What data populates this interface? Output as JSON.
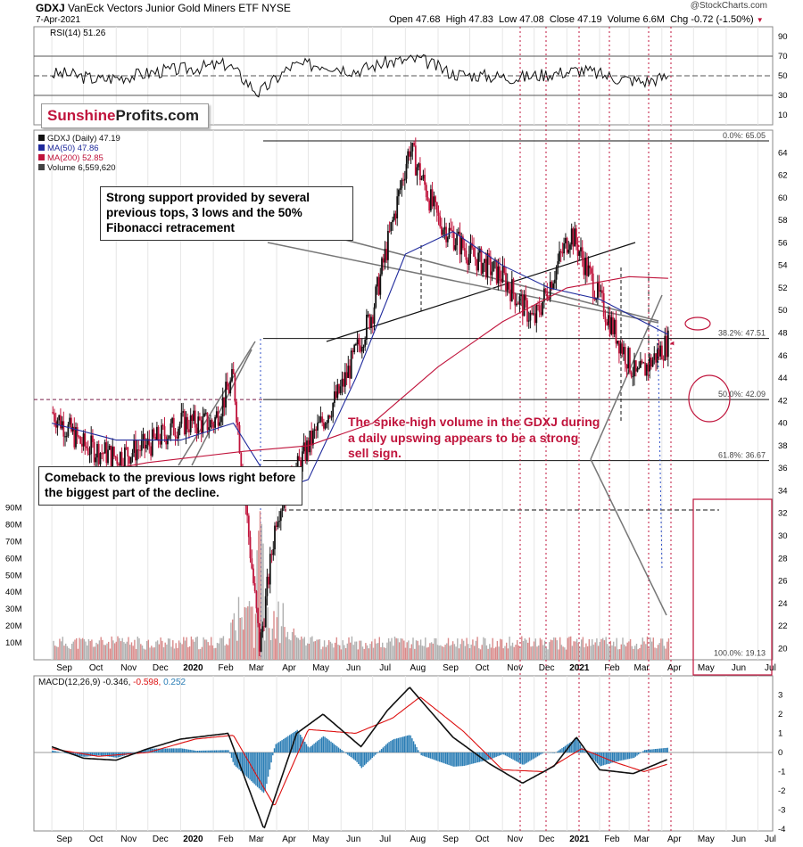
{
  "header": {
    "symbol": "GDXJ",
    "name": "VanEck Vectors Junior Gold Miners ETF",
    "exchange": "NYSE",
    "date": "7-Apr-2021",
    "watermark": "@StockCharts.com",
    "open_label": "Open",
    "open": "47.68",
    "high_label": "High",
    "high": "47.83",
    "low_label": "Low",
    "low": "47.08",
    "close_label": "Close",
    "close": "47.19",
    "volume_label": "Volume",
    "volume": "6.6M",
    "chg_label": "Chg",
    "chg": "-0.72 (-1.50%)",
    "chg_arrow": "▼"
  },
  "logo": {
    "part1": "Sunshine",
    "part2": "Profits.com"
  },
  "callouts": {
    "support": "Strong support provided by several previous tops, 3 lows and the 50% Fibonacci retracement",
    "comeback": "Comeback to the previous lows right before the biggest part of the decline.",
    "volume": "The spike-high volume in the GDXJ during a daily upswing appears to be a strong sell sign."
  },
  "colors": {
    "price_up": "#111111",
    "price_down": "#c0143c",
    "ma50": "#1f2a9c",
    "ma200": "#c0143c",
    "annotation_red": "#c0143c",
    "histogram": "#2a7db5",
    "volume_down": "#d98a8a",
    "volume_up": "#b0b0b0"
  },
  "chart_data": [
    {
      "type": "line",
      "panel": "rsi",
      "title": "RSI(14) 51.26",
      "ylim": [
        0,
        100
      ],
      "yticks": [
        10,
        30,
        50,
        70,
        90
      ],
      "reference_lines": [
        30,
        50,
        70
      ],
      "x": [
        "2019-09",
        "2019-10",
        "2019-11",
        "2019-12",
        "2020-01",
        "2020-02",
        "2020-03",
        "2020-04",
        "2020-05",
        "2020-06",
        "2020-07",
        "2020-08",
        "2020-09",
        "2020-10",
        "2020-11",
        "2020-12",
        "2021-01",
        "2021-02",
        "2021-03",
        "2021-04"
      ],
      "values": [
        52,
        46,
        50,
        55,
        58,
        62,
        32,
        60,
        62,
        55,
        64,
        67,
        52,
        50,
        48,
        52,
        56,
        48,
        44,
        51
      ]
    },
    {
      "type": "line",
      "panel": "price",
      "legend": [
        "GDXJ (Daily) 47.19",
        "MA(50) 47.86",
        "MA(200) 52.85",
        "Volume 6,559,620"
      ],
      "ylim": [
        19,
        66
      ],
      "yticks": [
        20,
        22,
        24,
        26,
        28,
        30,
        32,
        34,
        36,
        38,
        40,
        42,
        44,
        46,
        48,
        50,
        52,
        54,
        56,
        58,
        60,
        62,
        64
      ],
      "x_labels": [
        "Sep",
        "Oct",
        "Nov",
        "Dec",
        "2020",
        "Feb",
        "Mar",
        "Apr",
        "May",
        "Jun",
        "Jul",
        "Aug",
        "Sep",
        "Oct",
        "Nov",
        "Dec",
        "2021",
        "Feb",
        "Mar",
        "Apr",
        "May",
        "Jun",
        "Jul"
      ],
      "series": [
        {
          "name": "GDXJ",
          "x": [
            "2019-09-01",
            "2019-10-01",
            "2019-11-01",
            "2019-12-01",
            "2020-01-01",
            "2020-02-01",
            "2020-02-20",
            "2020-03-16",
            "2020-04-01",
            "2020-05-01",
            "2020-06-01",
            "2020-07-01",
            "2020-08-05",
            "2020-09-01",
            "2020-10-01",
            "2020-11-01",
            "2020-12-01",
            "2021-01-05",
            "2021-02-01",
            "2021-03-08",
            "2021-04-07"
          ],
          "values": [
            41,
            38,
            37,
            38,
            40,
            40,
            44,
            20,
            32,
            38,
            43,
            50,
            64.5,
            58,
            55,
            53,
            49,
            57,
            51,
            44,
            47.19
          ]
        },
        {
          "name": "MA(50)",
          "x": [
            "2019-09-01",
            "2019-11-01",
            "2020-01-01",
            "2020-02-20",
            "2020-03-31",
            "2020-05-01",
            "2020-06-15",
            "2020-08-01",
            "2020-09-15",
            "2020-11-01",
            "2020-12-15",
            "2021-02-01",
            "2021-04-07"
          ],
          "values": [
            40,
            38.5,
            38.5,
            40,
            34,
            35,
            44,
            55,
            57,
            54,
            52,
            51,
            47.86
          ]
        },
        {
          "name": "MA(200)",
          "x": [
            "2019-09-01",
            "2019-12-01",
            "2020-03-01",
            "2020-05-01",
            "2020-07-01",
            "2020-09-01",
            "2020-11-01",
            "2021-01-01",
            "2021-03-01",
            "2021-04-07"
          ],
          "values": [
            35,
            36.5,
            37.5,
            38,
            40,
            45,
            49,
            52,
            53,
            52.85
          ]
        }
      ],
      "fibonacci": [
        {
          "label": "0.0%: 65.05",
          "value": 65.05
        },
        {
          "label": "38.2%: 47.51",
          "value": 47.51
        },
        {
          "label": "50.0%: 42.09",
          "value": 42.09
        },
        {
          "label": "61.8%: 36.67",
          "value": 36.67
        },
        {
          "label": "100.0%: 19.13",
          "value": 19.13
        }
      ]
    },
    {
      "type": "bar",
      "panel": "volume",
      "yticks_labels": [
        "10M",
        "20M",
        "30M",
        "40M",
        "50M",
        "60M",
        "70M",
        "80M",
        "90M"
      ],
      "ylim": [
        0,
        95
      ],
      "spike": {
        "date": "2020-03-16",
        "value": 90
      }
    },
    {
      "type": "line",
      "panel": "macd",
      "title": "MACD(12,26,9) -0.346, -0.598, 0.252",
      "title_parts": {
        "label": "MACD(12,26,9)",
        "macd": "-0.346",
        "signal": "-0.598",
        "hist": "0.252"
      },
      "ylim": [
        -4.5,
        3.5
      ],
      "yticks": [
        -4,
        -3,
        -2,
        -1,
        0,
        1,
        2,
        3
      ],
      "x_labels": [
        "Sep",
        "Oct",
        "Nov",
        "Dec",
        "2020",
        "Feb",
        "Mar",
        "Apr",
        "May",
        "Jun",
        "Jul",
        "Aug",
        "Sep",
        "Oct",
        "Nov",
        "Dec",
        "2021",
        "Feb",
        "Mar",
        "Apr",
        "May",
        "Jun",
        "Jul"
      ],
      "series": [
        {
          "name": "MACD",
          "x": [
            "2019-09-01",
            "2019-10-01",
            "2019-11-01",
            "2019-12-01",
            "2020-01-01",
            "2020-02-15",
            "2020-03-20",
            "2020-04-20",
            "2020-05-15",
            "2020-06-20",
            "2020-07-15",
            "2020-08-05",
            "2020-09-15",
            "2020-10-20",
            "2020-11-20",
            "2020-12-20",
            "2021-01-10",
            "2021-02-01",
            "2021-03-05",
            "2021-04-07"
          ],
          "values": [
            0.3,
            -0.3,
            -0.4,
            0.2,
            0.7,
            1.0,
            -4.0,
            1.0,
            2.0,
            0.3,
            2.2,
            3.4,
            0.8,
            -0.6,
            -1.6,
            -0.7,
            0.8,
            -0.9,
            -1.1,
            -0.346
          ]
        },
        {
          "name": "Signal",
          "x": [
            "2019-09-01",
            "2019-10-15",
            "2019-12-01",
            "2020-01-15",
            "2020-02-20",
            "2020-03-30",
            "2020-05-01",
            "2020-06-15",
            "2020-07-20",
            "2020-08-15",
            "2020-09-25",
            "2020-11-01",
            "2020-12-10",
            "2021-01-15",
            "2021-02-15",
            "2021-03-15",
            "2021-04-07"
          ],
          "values": [
            0.2,
            -0.2,
            0.0,
            0.7,
            0.9,
            -2.8,
            1.2,
            1.0,
            1.8,
            2.9,
            1.1,
            -0.9,
            -1.0,
            0.2,
            -0.5,
            -1.0,
            -0.598
          ]
        }
      ]
    }
  ]
}
